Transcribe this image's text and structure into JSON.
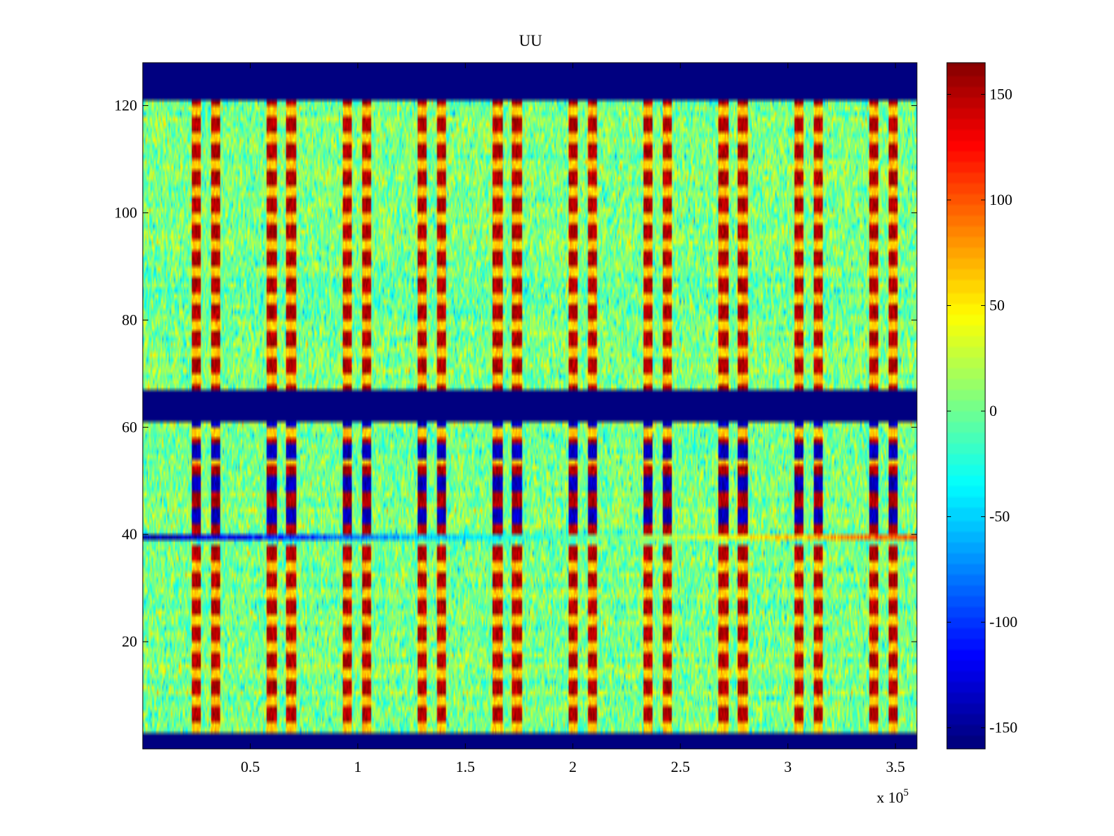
{
  "chart_data": {
    "type": "heatmap",
    "title": "UU",
    "xlabel": "",
    "ylabel": "",
    "x_multiplier_label": "x 10",
    "x_multiplier_exponent": "5",
    "xlim": [
      0,
      3.6
    ],
    "ylim": [
      0,
      128
    ],
    "xticks": [
      0.5,
      1,
      1.5,
      2,
      2.5,
      3,
      3.5
    ],
    "xtick_labels": [
      "0.5",
      "1",
      "1.5",
      "2",
      "2.5",
      "3",
      "3.5"
    ],
    "yticks": [
      20,
      40,
      60,
      80,
      100,
      120
    ],
    "ytick_labels": [
      "20",
      "40",
      "60",
      "80",
      "100",
      "120"
    ],
    "colormap": "jet",
    "clim": [
      -160,
      165
    ],
    "colorbar": {
      "ticks": [
        150,
        100,
        50,
        0,
        -50,
        -100,
        -150
      ],
      "tick_labels": [
        "150",
        "100",
        "50",
        "0",
        "-50",
        "-100",
        "-150"
      ]
    },
    "blank_bands": [
      {
        "y_from": 0,
        "y_to": 3,
        "value": -160
      },
      {
        "y_from": 61,
        "y_to": 67,
        "value": -160
      },
      {
        "y_from": 121,
        "y_to": 128,
        "value": -160
      }
    ],
    "background": {
      "mean": 0,
      "spread": 22
    },
    "stripe_pairs_x": [
      [
        0.25,
        0.34
      ],
      [
        0.6,
        0.69
      ],
      [
        0.95,
        1.04
      ],
      [
        1.3,
        1.39
      ],
      [
        1.65,
        1.74
      ],
      [
        2.0,
        2.09
      ],
      [
        2.35,
        2.44
      ],
      [
        2.7,
        2.79
      ],
      [
        3.05,
        3.14
      ],
      [
        3.4,
        3.49
      ]
    ],
    "stripe_rows_positive": [
      [
        3,
        38
      ],
      [
        40,
        61
      ],
      [
        67,
        121
      ]
    ],
    "stripe_rows_negative": [
      [
        40,
        61
      ]
    ],
    "row_trend": {
      "y": 39,
      "start_value": -150,
      "end_value": 100,
      "x_start": 0,
      "x_end": 3.6
    }
  },
  "colors": {
    "axis": "#000000",
    "background": "#ffffff"
  }
}
